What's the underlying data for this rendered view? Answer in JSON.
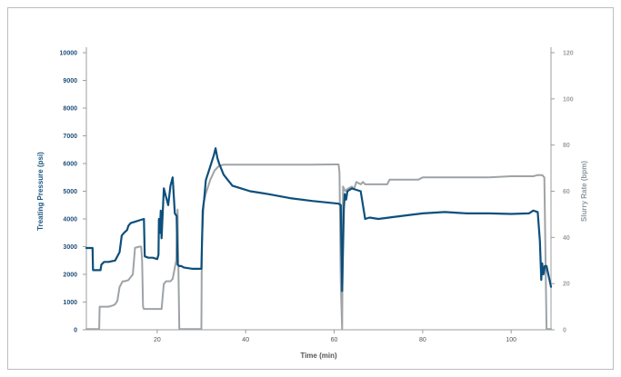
{
  "chart_data": {
    "type": "line",
    "title": "",
    "xlabel": "Time (min)",
    "ylabel_left": "Treating Pressure (psi)",
    "ylabel_right": "Slurry Rate (bpm)",
    "xlim": [
      4,
      109
    ],
    "ylim_left": [
      0,
      10000
    ],
    "ylim_right": [
      0,
      120
    ],
    "x_ticks": [
      "20",
      "40",
      "60",
      "80",
      "100"
    ],
    "y_ticks_left": [
      "0",
      "1000",
      "2000",
      "3000",
      "4000",
      "5000",
      "6000",
      "7000",
      "8000",
      "9000",
      "10000"
    ],
    "y_ticks_right": [
      "0",
      "20",
      "40",
      "60",
      "80",
      "100",
      "120"
    ],
    "grid": false,
    "legend": "none",
    "colors": {
      "pressure": "#0d4f7c",
      "rate": "#9ea3a7",
      "axis": "#9e9e9e"
    },
    "series": [
      {
        "key": "pressure",
        "axis": "left",
        "x": [
          4,
          5.4,
          5.5,
          7.2,
          7.4,
          8,
          9,
          10.5,
          11.5,
          12,
          12.5,
          13.2,
          13.5,
          14,
          15,
          16,
          17,
          17.2,
          18,
          19,
          20,
          20.3,
          20.4,
          20.6,
          20.8,
          21,
          21.5,
          22,
          22.5,
          23,
          23.5,
          24,
          24.4,
          24.6,
          25,
          25.5,
          26,
          28,
          30,
          30.3,
          30.6,
          31,
          32,
          32.8,
          33.2,
          33.6,
          34,
          35,
          36,
          37,
          39,
          41,
          43,
          45,
          50,
          55,
          61,
          61.5,
          61.8,
          62,
          62.2,
          62.4,
          62.7,
          63,
          64,
          65,
          66,
          67,
          68,
          70,
          75,
          80,
          85,
          90,
          95,
          100,
          104,
          105,
          106,
          106.5,
          106.8,
          107,
          107.3,
          107.6,
          108,
          109
        ],
        "y": [
          2950,
          2950,
          2150,
          2150,
          2350,
          2450,
          2450,
          2500,
          2800,
          3400,
          3500,
          3600,
          3750,
          3850,
          3900,
          3950,
          4000,
          2650,
          2600,
          2600,
          2550,
          2700,
          4000,
          3500,
          4300,
          3300,
          5100,
          4800,
          4500,
          5200,
          5500,
          4200,
          4100,
          2350,
          2300,
          2300,
          2250,
          2200,
          2200,
          4300,
          4700,
          5400,
          5900,
          6300,
          6550,
          6200,
          6000,
          5600,
          5400,
          5200,
          5100,
          5000,
          4950,
          4900,
          4750,
          4650,
          4550,
          4500,
          1400,
          3000,
          4400,
          4900,
          4700,
          5000,
          5100,
          5050,
          5000,
          4000,
          4050,
          4000,
          4100,
          4200,
          4250,
          4200,
          4200,
          4180,
          4200,
          4300,
          4250,
          3200,
          1800,
          2400,
          2000,
          2300,
          2300,
          1550
        ]
      },
      {
        "key": "rate",
        "axis": "right",
        "x": [
          4,
          6.9,
          7,
          7.3,
          9,
          10,
          10.5,
          11,
          11.5,
          12.2,
          12.6,
          13.5,
          14.5,
          15,
          16,
          16.4,
          16.6,
          16.8,
          17,
          18,
          20.5,
          21,
          21.5,
          21.6,
          22,
          23,
          23.5,
          24,
          24.3,
          24.6,
          25,
          28,
          30,
          30.1,
          30.5,
          31,
          32,
          33,
          34,
          35,
          40,
          45,
          50,
          55,
          60,
          61,
          61.2,
          61.5,
          61.8,
          62,
          62.5,
          63,
          64,
          64.5,
          65,
          66,
          66.5,
          67,
          70,
          72,
          72.5,
          75,
          79,
          80,
          85,
          90,
          95,
          100,
          104,
          105,
          106,
          106.5,
          107,
          107.5,
          108,
          109
        ],
        "y": [
          0.3,
          0.3,
          10,
          10,
          10,
          10.5,
          11,
          12.5,
          18.5,
          21,
          21,
          21.5,
          24,
          35.5,
          36,
          36,
          30,
          10,
          9,
          9,
          9,
          9,
          20,
          20,
          21,
          21,
          22,
          27,
          30,
          52,
          0.3,
          0.3,
          0.3,
          38,
          55,
          59,
          65,
          69,
          71,
          71.5,
          71.5,
          71.5,
          71.5,
          71.5,
          71.6,
          71.6,
          68,
          20,
          0.3,
          62,
          60,
          61,
          62,
          61,
          64,
          63,
          64,
          63,
          63,
          63,
          65,
          65,
          65,
          66,
          66,
          66,
          66,
          66.5,
          66.5,
          66.5,
          67,
          67,
          67,
          66,
          0.3,
          0.3
        ]
      }
    ]
  }
}
